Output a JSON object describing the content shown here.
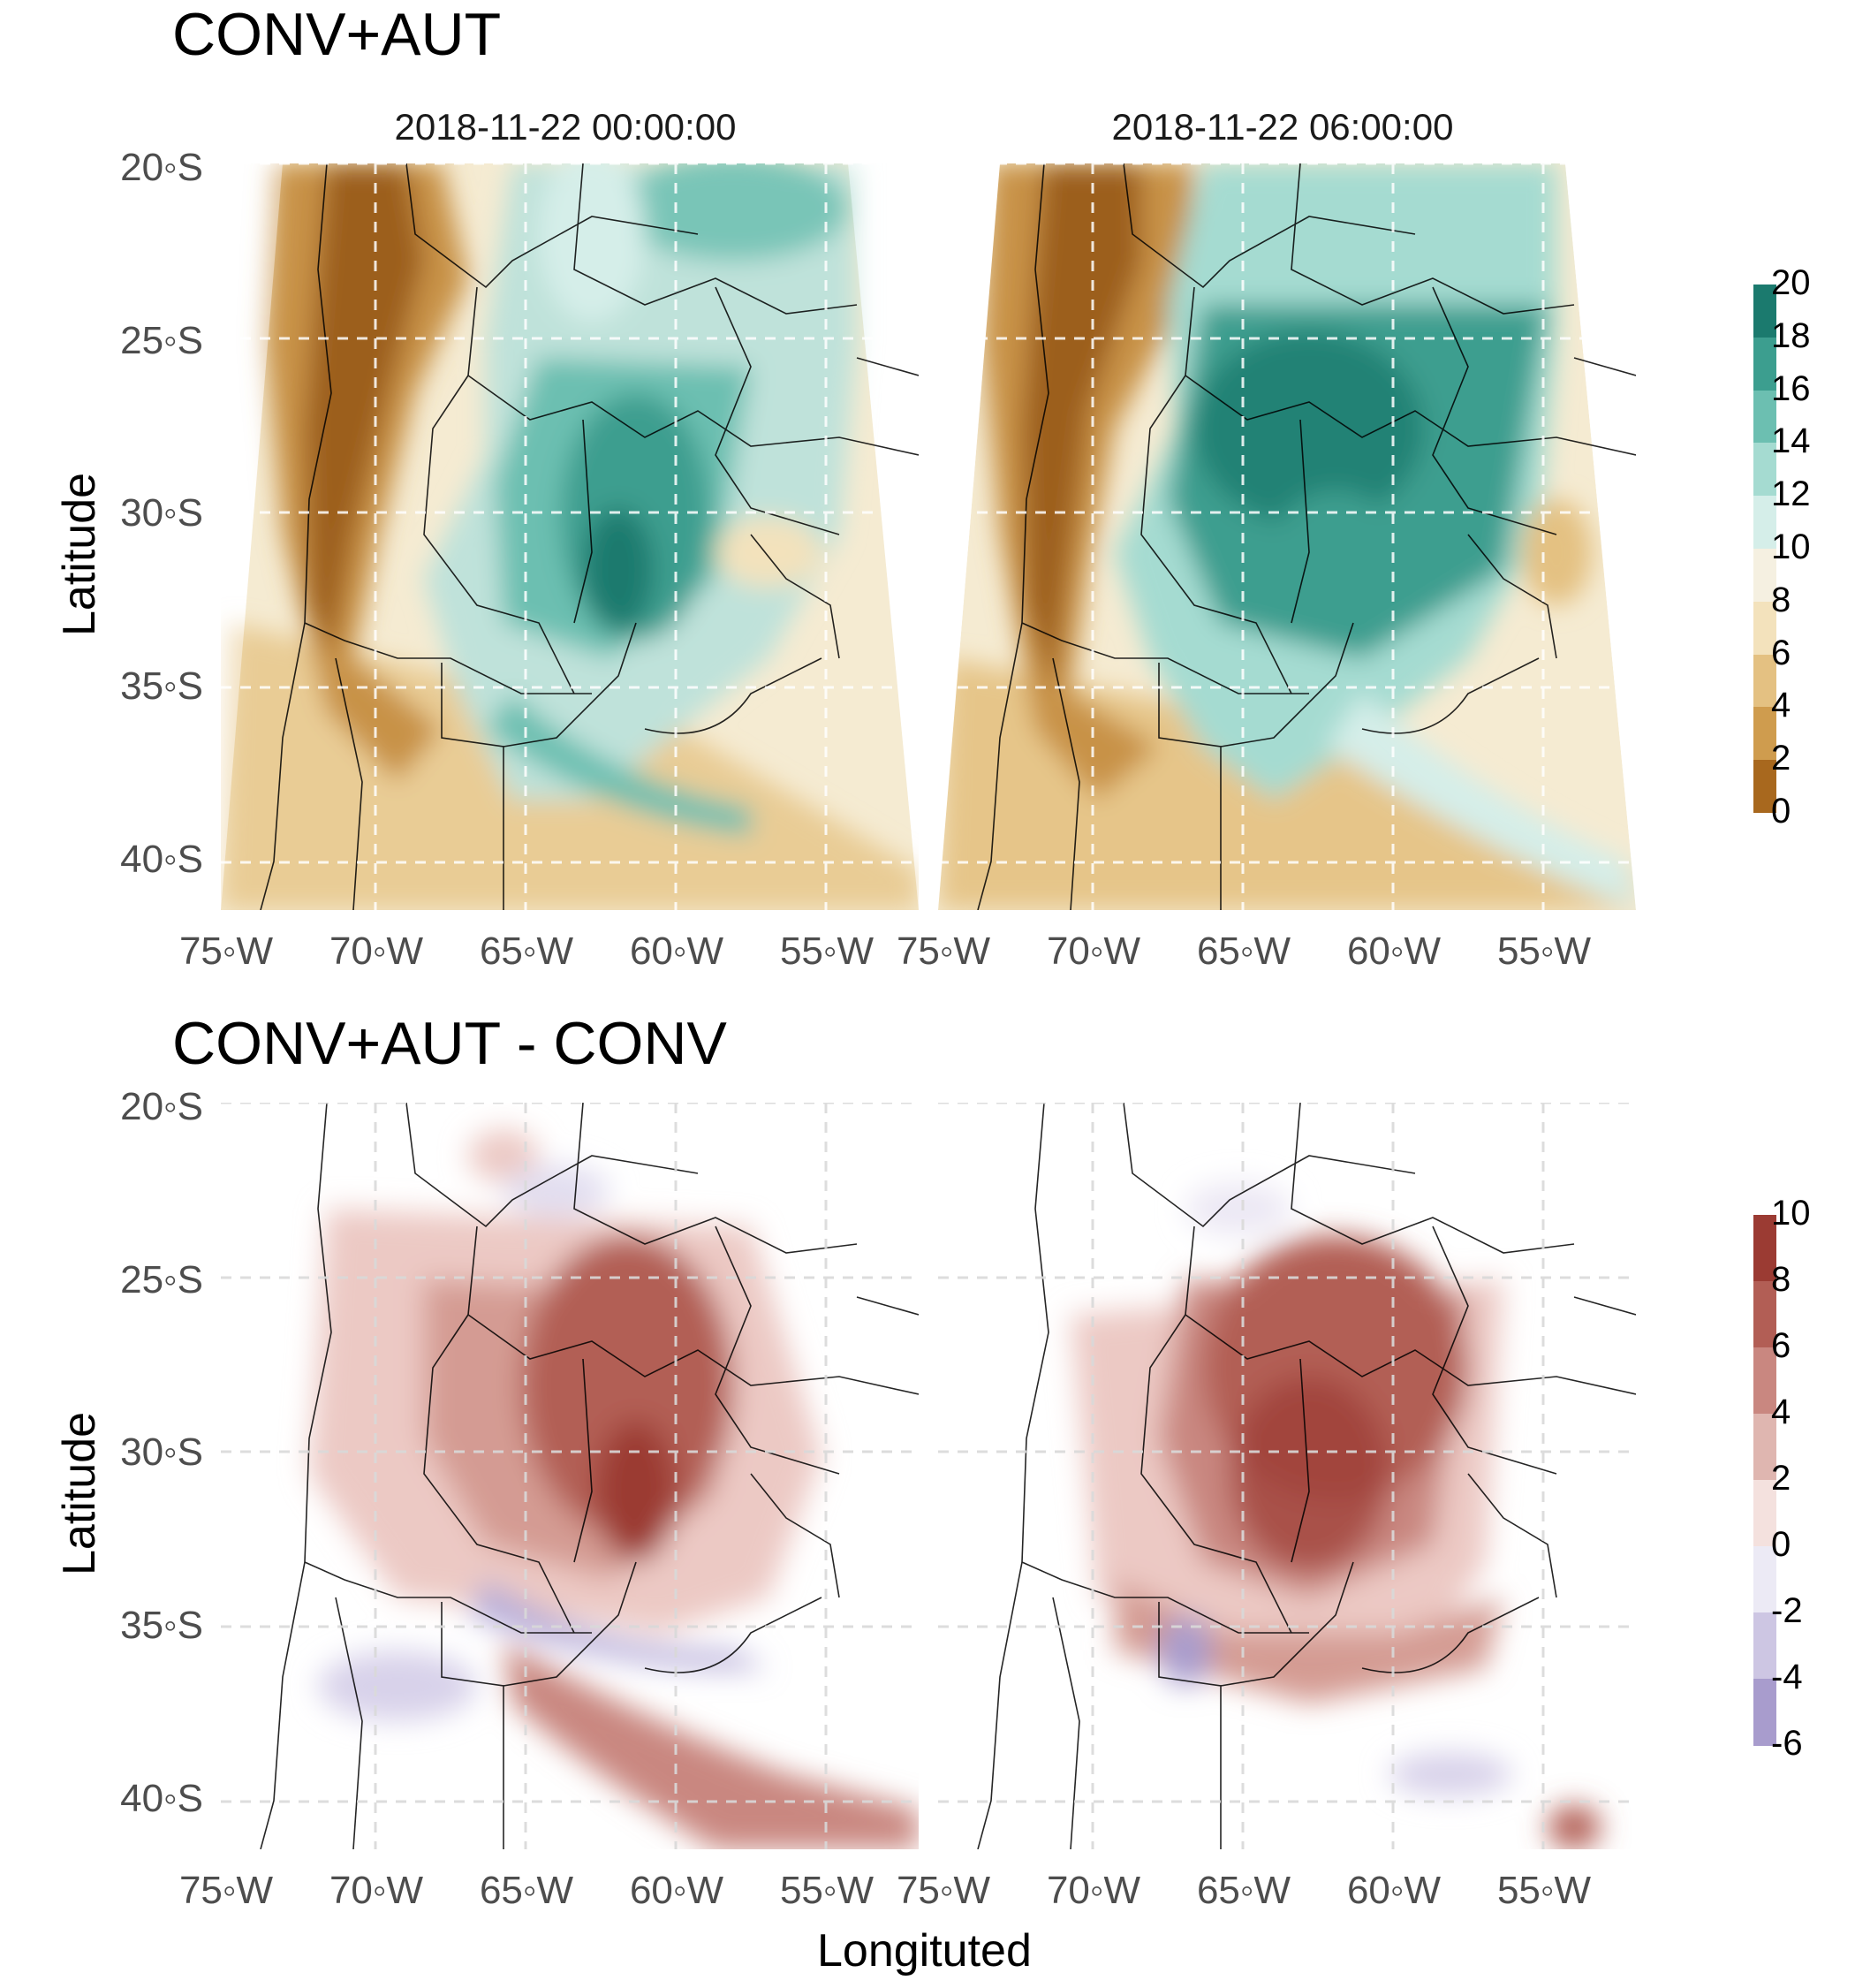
{
  "sections": {
    "top_title": "CONV+AUT",
    "bottom_title": "CONV+AUT - CONV"
  },
  "facets": [
    "2018-11-22 00:00:00",
    "2018-11-22 06:00:00"
  ],
  "axes": {
    "y_title": "Latitude",
    "x_title": "Longituted",
    "lat_ticks": [
      "20◦S",
      "25◦S",
      "30◦S",
      "35◦S",
      "40◦S"
    ],
    "lon_ticks": [
      "75◦W",
      "70◦W",
      "65◦W",
      "60◦W",
      "55◦W"
    ]
  },
  "legend_top": {
    "ticks": [
      "20",
      "18",
      "16",
      "14",
      "12",
      "10",
      "8",
      "6",
      "4",
      "2",
      "0"
    ],
    "colors": [
      "#1b7a6e",
      "#3c9e8f",
      "#6cbfb1",
      "#a5dbd1",
      "#d5eee9",
      "#f5f0e1",
      "#f3e2bc",
      "#e4c182",
      "#cf9c4e",
      "#a8681e"
    ]
  },
  "legend_bottom": {
    "ticks": [
      "10",
      "8",
      "6",
      "4",
      "2",
      "0",
      "-2",
      "-4",
      "-6"
    ],
    "colors": [
      "#9b3b33",
      "#b25e55",
      "#c98780",
      "#dfb6b0",
      "#f4e1de",
      "#eceaf5",
      "#cdc6e3",
      "#a89ccd"
    ]
  },
  "map_colors": {
    "andes_brown": "#a8681e",
    "plain_teal": "#3c9e8f",
    "diff_red": "#9b3b33",
    "diff_blue": "#a89ccd",
    "sand": "#f0d9a8"
  }
}
